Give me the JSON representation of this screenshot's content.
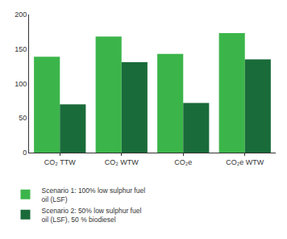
{
  "chart_data": {
    "type": "bar",
    "categories": [
      "CO₂ TTW",
      "CO₂ WTW",
      "CO₂e",
      "CO₂e WTW"
    ],
    "series": [
      {
        "name": "Scenario 1: 100% low sulphur fuel oil (LSF)",
        "color": "#3bb54a",
        "values": [
          139,
          168,
          143,
          173
        ]
      },
      {
        "name": "Scenario 2: 50% low sulphur fuel oil (LSF), 50 % biodiesel",
        "color": "#1a6b3a",
        "values": [
          70,
          131,
          72,
          135
        ]
      }
    ],
    "ylim": [
      0,
      200
    ],
    "yticks": [
      0,
      50,
      100,
      150,
      200
    ],
    "grid": false,
    "legend": "bottom"
  }
}
